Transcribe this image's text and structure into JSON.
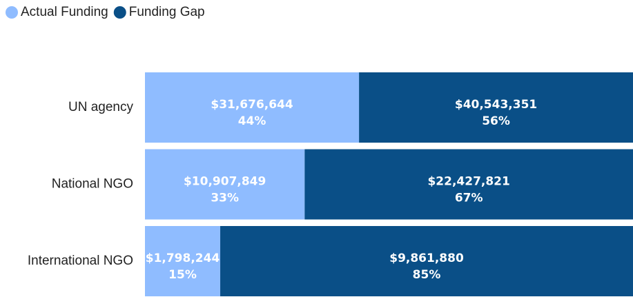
{
  "chart_data": {
    "type": "bar",
    "orientation": "horizontal",
    "stacking": "percent",
    "categories": [
      "UN agency",
      "National NGO",
      "International NGO"
    ],
    "series": [
      {
        "name": "Actual Funding",
        "color": "#8fbcff",
        "values": [
          31676644,
          10907849,
          1798244
        ],
        "value_labels": [
          "$31,676,644",
          "$10,907,849",
          "$1,798,244"
        ],
        "percents": [
          44,
          33,
          15
        ],
        "percent_labels": [
          "44%",
          "33%",
          "15%"
        ]
      },
      {
        "name": "Funding Gap",
        "color": "#0a4f87",
        "values": [
          40543351,
          22427821,
          9861880
        ],
        "value_labels": [
          "$40,543,351",
          "$22,427,821",
          "$9,861,880"
        ],
        "percents": [
          56,
          67,
          85
        ],
        "percent_labels": [
          "56%",
          "67%",
          "85%"
        ]
      }
    ],
    "legend": "top-left"
  }
}
